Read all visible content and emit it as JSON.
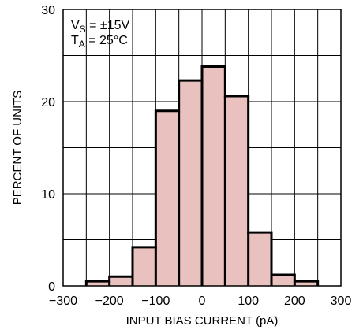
{
  "chart_data": {
    "type": "bar",
    "xlabel": "INPUT BIAS CURRENT (pA)",
    "ylabel": "PERCENT OF UNITS",
    "xlim": [
      -300,
      300
    ],
    "ylim": [
      0,
      30
    ],
    "x_ticks": [
      -300,
      -200,
      -100,
      0,
      100,
      200,
      300
    ],
    "x_tick_labels": [
      "−300",
      "−200",
      "−100",
      "0",
      "100",
      "200",
      "300"
    ],
    "y_ticks": [
      0,
      10,
      20,
      30
    ],
    "y_tick_labels": [
      "0",
      "10",
      "20",
      "30"
    ],
    "grid": true,
    "bin_edges": [
      -250,
      -200,
      -150,
      -100,
      -50,
      0,
      50,
      100,
      150,
      200,
      250
    ],
    "values": [
      0.5,
      1.0,
      4.2,
      19.0,
      22.3,
      23.8,
      20.6,
      5.8,
      1.2,
      0.5
    ],
    "colors": {
      "fill": "#e9c2c0",
      "edge": "#000000",
      "grid": "#000000"
    },
    "annotation": {
      "line1": {
        "main": "V",
        "sub": "S",
        "rest": " = ±15V"
      },
      "line2": {
        "main": "T",
        "sub": "A",
        "rest": " = 25°C"
      }
    }
  }
}
